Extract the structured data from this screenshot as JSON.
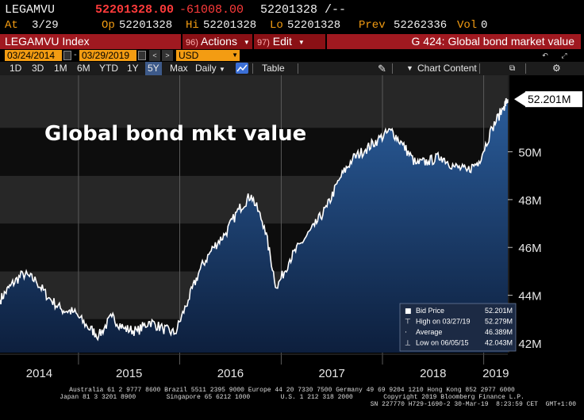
{
  "header": {
    "ticker": "LEGAMVU",
    "last_price": "52201328.00",
    "change": "-61008.00",
    "bid_ask": "52201328 /--",
    "at_label": "At",
    "at_date": "3/29",
    "op_label": "Op",
    "op_value": "52201328",
    "hi_label": "Hi",
    "hi_value": "52201328",
    "lo_label": "Lo",
    "lo_value": "52201328",
    "prev_label": "Prev",
    "prev_value": "52262336",
    "vol_label": "Vol",
    "vol_value": "0"
  },
  "toolbar": {
    "security": "LEGAMVU Index",
    "actions_num": "96)",
    "actions_label": "Actions",
    "edit_num": "97)",
    "edit_label": "Edit",
    "function_title": "G 424: Global bond market value"
  },
  "dates": {
    "start": "03/24/2014",
    "end": "03/29/2019",
    "currency": "USD"
  },
  "periods": {
    "items": [
      "1D",
      "3D",
      "1M",
      "6M",
      "YTD",
      "1Y",
      "5Y",
      "Max"
    ],
    "active": "5Y",
    "frequency": "Daily",
    "table_label": "Table",
    "chart_content_label": "Chart Content"
  },
  "chart_data": {
    "type": "area",
    "title": "Global bond mkt value",
    "xlabel": "",
    "ylabel": "",
    "x_range": [
      "2014-03-24",
      "2019-03-29"
    ],
    "x_ticks": [
      "2014",
      "2015",
      "2016",
      "2017",
      "2018",
      "2019"
    ],
    "y_ticks": [
      "42M",
      "44M",
      "46M",
      "48M",
      "50M"
    ],
    "ylim": [
      41.6,
      53.2
    ],
    "unit": "M",
    "last_value_label": "52.201M",
    "x": [
      "2014-03-24",
      "2014-05-01",
      "2014-06-15",
      "2014-08-01",
      "2014-09-15",
      "2014-11-01",
      "2014-12-15",
      "2015-02-01",
      "2015-03-15",
      "2015-05-01",
      "2015-06-15",
      "2015-08-01",
      "2015-09-15",
      "2015-11-01",
      "2015-12-15",
      "2016-02-01",
      "2016-03-15",
      "2016-05-01",
      "2016-06-15",
      "2016-08-01",
      "2016-09-15",
      "2016-11-01",
      "2016-12-15",
      "2017-02-01",
      "2017-03-15",
      "2017-05-01",
      "2017-06-15",
      "2017-08-01",
      "2017-09-15",
      "2017-11-01",
      "2017-12-15",
      "2018-02-01",
      "2018-03-15",
      "2018-05-01",
      "2018-06-15",
      "2018-08-01",
      "2018-09-15",
      "2018-11-01",
      "2018-12-15",
      "2019-02-01",
      "2019-03-15",
      "2019-03-29"
    ],
    "series": [
      {
        "values": [
          43.8,
          44.4,
          44.9,
          44.6,
          43.9,
          43.4,
          43.3,
          42.7,
          42.3,
          43.1,
          42.6,
          42.5,
          42.9,
          42.6,
          42.4,
          43.8,
          45.1,
          46.0,
          46.6,
          47.6,
          48.2,
          46.9,
          44.3,
          45.5,
          46.2,
          46.9,
          47.7,
          48.9,
          49.7,
          50.1,
          50.5,
          50.9,
          50.3,
          49.5,
          49.6,
          49.8,
          49.4,
          49.2,
          49.6,
          51.0,
          51.9,
          52.2
        ]
      }
    ],
    "legend": {
      "placement": "bottom-right",
      "entries": [
        {
          "label": "Bid Price",
          "value": "52.201M"
        },
        {
          "label": "High on 03/27/19",
          "value": "52.279M"
        },
        {
          "label": "Average",
          "value": "46.389M"
        },
        {
          "label": "Low on 06/05/15",
          "value": "42.043M"
        }
      ]
    },
    "colors": {
      "line": "#ffffff",
      "area_top": "#2a5c9a",
      "area_bottom": "#0d1f3d",
      "band_light": "#272727",
      "band_dark": "#0d0d0d",
      "last_label_bg": "#ffffff"
    }
  },
  "footer": {
    "line1": "Australia 61 2 9777 8600 Brazil 5511 2395 9000 Europe 44 20 7330 7500 Germany 49 69 9204 1210 Hong Kong 852 2977 6000",
    "line2": "Japan 81 3 3201 8900        Singapore 65 6212 1000        U.S. 1 212 318 2000        Copyright 2019 Bloomberg Finance L.P.",
    "line3": "SN 227770 H729-1690-2 30-Mar-19  8:23:59 CET  GMT+1:00"
  }
}
